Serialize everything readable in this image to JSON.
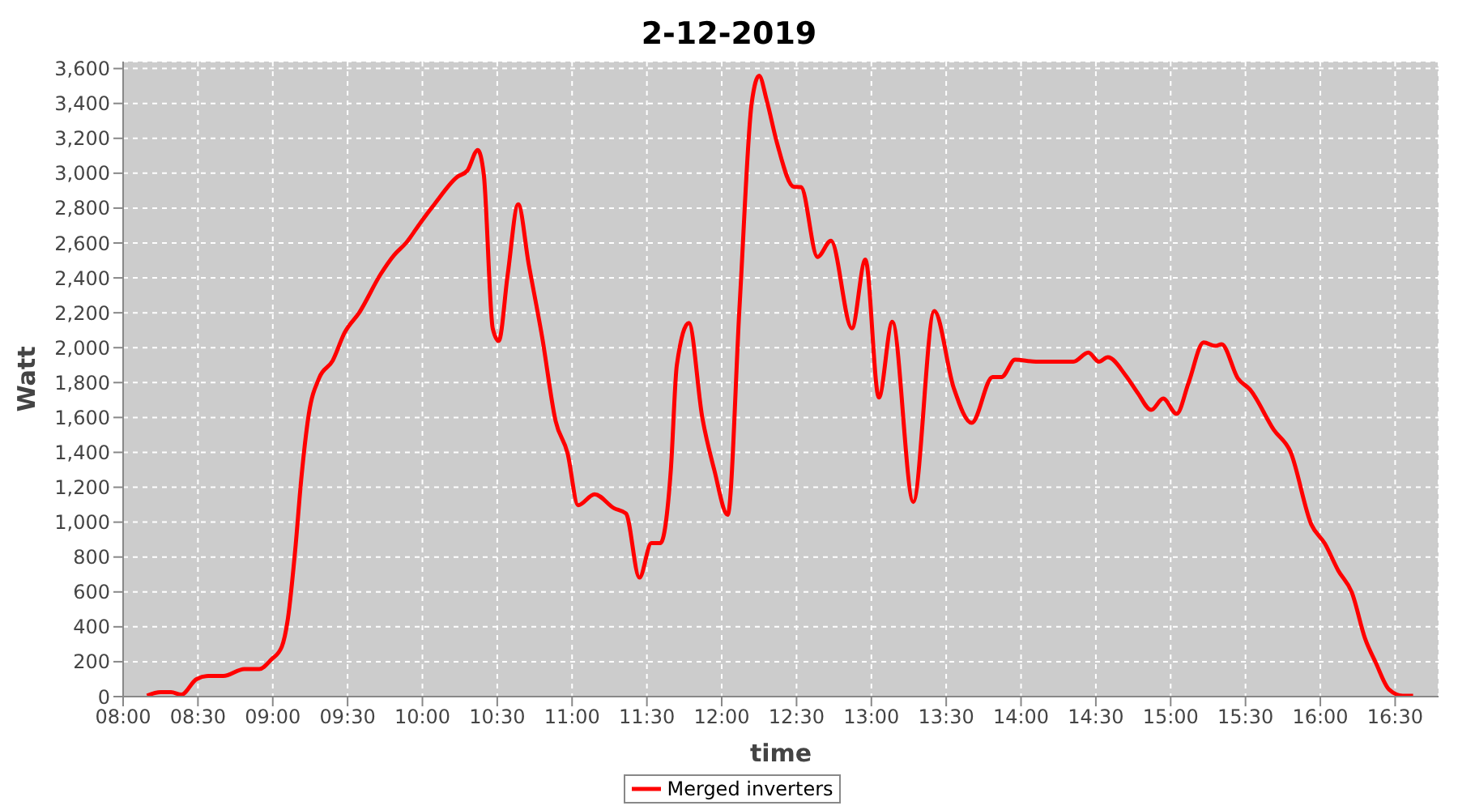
{
  "chart_data": {
    "type": "line",
    "title": "2-12-2019",
    "xlabel": "time",
    "ylabel": "Watt",
    "legend": "bottom",
    "grid": true,
    "marker": "none",
    "line_style": "solid",
    "xlim": [
      8,
      16.79
    ],
    "ylim": [
      0,
      3640
    ],
    "xticks": [
      {
        "value": 8,
        "label": "08:00"
      },
      {
        "value": 8.5,
        "label": "08:30"
      },
      {
        "value": 9,
        "label": "09:00"
      },
      {
        "value": 9.5,
        "label": "09:30"
      },
      {
        "value": 10,
        "label": "10:00"
      },
      {
        "value": 10.5,
        "label": "10:30"
      },
      {
        "value": 11,
        "label": "11:00"
      },
      {
        "value": 11.5,
        "label": "11:30"
      },
      {
        "value": 12,
        "label": "12:00"
      },
      {
        "value": 12.5,
        "label": "12:30"
      },
      {
        "value": 13,
        "label": "13:00"
      },
      {
        "value": 13.5,
        "label": "13:30"
      },
      {
        "value": 14,
        "label": "14:00"
      },
      {
        "value": 14.5,
        "label": "14:30"
      },
      {
        "value": 15,
        "label": "15:00"
      },
      {
        "value": 15.5,
        "label": "15:30"
      },
      {
        "value": 16,
        "label": "16:00"
      },
      {
        "value": 16.5,
        "label": "16:30"
      }
    ],
    "yticks": [
      {
        "value": 0,
        "label": "0"
      },
      {
        "value": 200,
        "label": "200"
      },
      {
        "value": 400,
        "label": "400"
      },
      {
        "value": 600,
        "label": "600"
      },
      {
        "value": 800,
        "label": "800"
      },
      {
        "value": 1000,
        "label": "1,000"
      },
      {
        "value": 1200,
        "label": "1,200"
      },
      {
        "value": 1400,
        "label": "1,400"
      },
      {
        "value": 1600,
        "label": "1,600"
      },
      {
        "value": 1800,
        "label": "1,800"
      },
      {
        "value": 2000,
        "label": "2,000"
      },
      {
        "value": 2200,
        "label": "2,200"
      },
      {
        "value": 2400,
        "label": "2,400"
      },
      {
        "value": 2600,
        "label": "2,600"
      },
      {
        "value": 2800,
        "label": "2,800"
      },
      {
        "value": 3000,
        "label": "3,000"
      },
      {
        "value": 3200,
        "label": "3,200"
      },
      {
        "value": 3400,
        "label": "3,400"
      },
      {
        "value": 3600,
        "label": "3,600"
      }
    ],
    "series": [
      {
        "name": "Merged inverters",
        "color": "#ff0000",
        "x": [
          8.16,
          8.25,
          8.32,
          8.39,
          8.49,
          8.57,
          8.67,
          8.81,
          8.91,
          8.99,
          9.06,
          9.1,
          9.15,
          9.19,
          9.24,
          9.31,
          9.4,
          9.48,
          9.58,
          9.72,
          9.81,
          9.89,
          9.99,
          10.08,
          10.23,
          10.3,
          10.37,
          10.41,
          10.47,
          10.51,
          10.57,
          10.64,
          10.71,
          10.8,
          10.89,
          10.97,
          11.04,
          11.15,
          11.28,
          11.36,
          11.45,
          11.53,
          11.59,
          11.66,
          11.7,
          11.78,
          11.87,
          11.95,
          12.04,
          12.12,
          12.2,
          12.25,
          12.3,
          12.37,
          12.48,
          12.53,
          12.64,
          12.73,
          12.87,
          12.96,
          13.05,
          13.14,
          13.28,
          13.42,
          13.55,
          13.67,
          13.81,
          13.87,
          13.96,
          14.1,
          14.35,
          14.45,
          14.52,
          14.58,
          14.7,
          14.78,
          14.87,
          14.95,
          15.04,
          15.12,
          15.22,
          15.3,
          15.34,
          15.45,
          15.53,
          15.69,
          15.8,
          15.94,
          16.03,
          16.12,
          16.21,
          16.3,
          16.37,
          16.46,
          16.55,
          16.62
        ],
        "values": [
          5,
          25,
          25,
          12,
          100,
          118,
          118,
          158,
          158,
          212,
          285,
          440,
          840,
          1243,
          1615,
          1826,
          1925,
          2086,
          2204,
          2420,
          2530,
          2600,
          2720,
          2822,
          2977,
          3015,
          3133,
          2993,
          2110,
          2039,
          2420,
          2822,
          2480,
          2061,
          1580,
          1395,
          1097,
          1160,
          1080,
          1050,
          682,
          880,
          880,
          1300,
          1900,
          2142,
          1600,
          1300,
          1042,
          2250,
          3400,
          3559,
          3420,
          3171,
          2923,
          2920,
          2520,
          2613,
          2111,
          2505,
          1714,
          2148,
          1116,
          2210,
          1770,
          1569,
          1832,
          1832,
          1931,
          1920,
          1920,
          1972,
          1920,
          1945,
          1840,
          1740,
          1643,
          1708,
          1621,
          1800,
          2030,
          2010,
          2020,
          1823,
          1760,
          1528,
          1404,
          986,
          877,
          722,
          598,
          330,
          195,
          40,
          5,
          5
        ]
      }
    ]
  }
}
